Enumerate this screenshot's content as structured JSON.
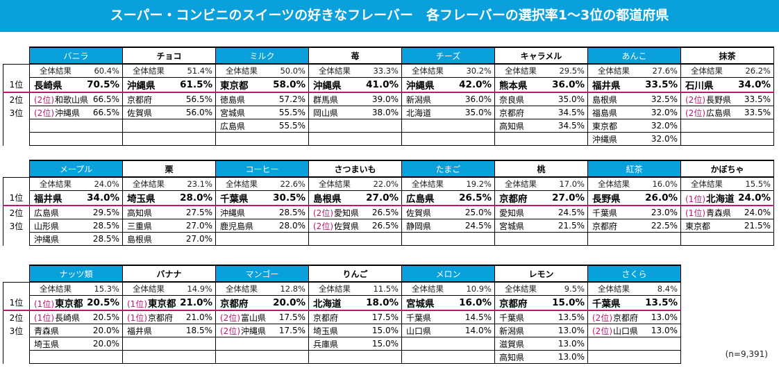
{
  "title": "スーパー・コンビニのスイーツの好きなフレーバー　各フレーバーの選択率1～3位の都道府県",
  "overall_label": "全体結果",
  "rank_labels": [
    "1位",
    "2位",
    "3位"
  ],
  "sample_size": "(n=9,391)",
  "colors": {
    "banner": "#0aa0dc",
    "rank1_line": "#c0166e",
    "tie_tag": "#c0166e"
  },
  "blocks": [
    {
      "flavors": [
        {
          "name": "バニラ",
          "style": "blue",
          "overall": "60.4%",
          "rows": [
            [
              {
                "pref": "長崎県",
                "pct": "70.5%"
              }
            ],
            [
              {
                "tie": "(2位)",
                "pref": "和歌山県",
                "pct": "66.5%"
              }
            ],
            [
              {
                "tie": "(2位)",
                "pref": "沖縄県",
                "pct": "66.5%"
              }
            ]
          ]
        },
        {
          "name": "チョコ",
          "style": "white",
          "overall": "51.4%",
          "rows": [
            [
              {
                "pref": "沖縄県",
                "pct": "61.5%"
              }
            ],
            [
              {
                "pref": "京都府",
                "pct": "56.5%"
              }
            ],
            [
              {
                "pref": "佐賀県",
                "pct": "56.0%"
              }
            ]
          ]
        },
        {
          "name": "ミルク",
          "style": "blue",
          "overall": "50.0%",
          "rows": [
            [
              {
                "pref": "東京都",
                "pct": "58.0%"
              }
            ],
            [
              {
                "pref": "徳島県",
                "pct": "57.2%"
              }
            ],
            [
              {
                "pref": "宮城県",
                "pct": "55.5%"
              },
              {
                "pref": "広島県",
                "pct": "55.5%"
              }
            ]
          ]
        },
        {
          "name": "苺",
          "style": "white",
          "overall": "33.3%",
          "rows": [
            [
              {
                "pref": "沖縄県",
                "pct": "41.0%"
              }
            ],
            [
              {
                "pref": "群馬県",
                "pct": "39.0%"
              }
            ],
            [
              {
                "pref": "岡山県",
                "pct": "38.0%"
              }
            ]
          ]
        },
        {
          "name": "チーズ",
          "style": "blue",
          "overall": "30.2%",
          "rows": [
            [
              {
                "pref": "沖縄県",
                "pct": "42.0%"
              }
            ],
            [
              {
                "pref": "新潟県",
                "pct": "36.0%"
              }
            ],
            [
              {
                "pref": "北海道",
                "pct": "35.0%"
              }
            ]
          ]
        },
        {
          "name": "キャラメル",
          "style": "white",
          "overall": "29.5%",
          "rows": [
            [
              {
                "pref": "熊本県",
                "pct": "36.0%"
              }
            ],
            [
              {
                "pref": "奈良県",
                "pct": "35.0%"
              }
            ],
            [
              {
                "pref": "京都府",
                "pct": "34.5%"
              },
              {
                "pref": "高知県",
                "pct": "34.5%"
              }
            ]
          ]
        },
        {
          "name": "あんこ",
          "style": "blue",
          "overall": "27.6%",
          "rows": [
            [
              {
                "pref": "福井県",
                "pct": "33.5%"
              }
            ],
            [
              {
                "pref": "島根県",
                "pct": "32.5%"
              }
            ],
            [
              {
                "pref": "福島県",
                "pct": "32.0%"
              },
              {
                "pref": "東京都",
                "pct": "32.0%"
              },
              {
                "pref": "沖縄県",
                "pct": "32.0%"
              }
            ]
          ]
        },
        {
          "name": "抹茶",
          "style": "white",
          "overall": "26.2%",
          "rows": [
            [
              {
                "pref": "石川県",
                "pct": "34.0%"
              }
            ],
            [
              {
                "tie": "(2位)",
                "pref": "長野県",
                "pct": "33.5%"
              }
            ],
            [
              {
                "tie": "(2位)",
                "pref": "広島県",
                "pct": "33.5%"
              }
            ]
          ]
        }
      ]
    },
    {
      "flavors": [
        {
          "name": "メープル",
          "style": "blue",
          "overall": "24.0%",
          "rows": [
            [
              {
                "pref": "福井県",
                "pct": "34.0%"
              }
            ],
            [
              {
                "pref": "広島県",
                "pct": "29.5%"
              }
            ],
            [
              {
                "pref": "山形県",
                "pct": "28.5%"
              },
              {
                "pref": "沖縄県",
                "pct": "28.5%"
              }
            ]
          ]
        },
        {
          "name": "栗",
          "style": "white",
          "overall": "23.1%",
          "rows": [
            [
              {
                "pref": "埼玉県",
                "pct": "28.0%"
              }
            ],
            [
              {
                "pref": "高知県",
                "pct": "27.5%"
              }
            ],
            [
              {
                "pref": "三重県",
                "pct": "27.0%"
              },
              {
                "pref": "島根県",
                "pct": "27.0%"
              }
            ]
          ]
        },
        {
          "name": "コーヒー",
          "style": "blue",
          "overall": "22.6%",
          "rows": [
            [
              {
                "pref": "千葉県",
                "pct": "30.5%"
              }
            ],
            [
              {
                "pref": "沖縄県",
                "pct": "28.5%"
              }
            ],
            [
              {
                "pref": "鹿児島県",
                "pct": "28.0%"
              }
            ]
          ]
        },
        {
          "name": "さつまいも",
          "style": "white",
          "overall": "22.0%",
          "rows": [
            [
              {
                "pref": "島根県",
                "pct": "27.0%"
              }
            ],
            [
              {
                "tie": "(2位)",
                "pref": "愛知県",
                "pct": "26.5%"
              }
            ],
            [
              {
                "tie": "(2位)",
                "pref": "佐賀県",
                "pct": "26.5%"
              }
            ]
          ]
        },
        {
          "name": "たまご",
          "style": "blue",
          "overall": "19.2%",
          "rows": [
            [
              {
                "pref": "広島県",
                "pct": "26.5%"
              }
            ],
            [
              {
                "pref": "佐賀県",
                "pct": "25.0%"
              }
            ],
            [
              {
                "pref": "静岡県",
                "pct": "24.5%"
              }
            ]
          ]
        },
        {
          "name": "桃",
          "style": "white",
          "overall": "17.0%",
          "rows": [
            [
              {
                "pref": "京都府",
                "pct": "27.0%"
              }
            ],
            [
              {
                "pref": "愛知県",
                "pct": "24.5%"
              }
            ],
            [
              {
                "pref": "宮城県",
                "pct": "21.5%"
              }
            ]
          ]
        },
        {
          "name": "紅茶",
          "style": "blue",
          "overall": "16.0%",
          "rows": [
            [
              {
                "pref": "長野県",
                "pct": "26.0%"
              }
            ],
            [
              {
                "pref": "千葉県",
                "pct": "23.0%"
              }
            ],
            [
              {
                "pref": "京都府",
                "pct": "22.5%"
              }
            ]
          ]
        },
        {
          "name": "かぼちゃ",
          "style": "white",
          "overall": "15.5%",
          "rows": [
            [
              {
                "tie": "(1位)",
                "pref": "北海道",
                "pct": "24.0%"
              }
            ],
            [
              {
                "tie": "(1位)",
                "pref": "青森県",
                "pct": "24.0%"
              }
            ],
            [
              {
                "pref": "東京都",
                "pct": "21.5%"
              }
            ]
          ]
        }
      ]
    },
    {
      "flavors": [
        {
          "name": "ナッツ類",
          "style": "blue",
          "overall": "15.3%",
          "rows": [
            [
              {
                "tie": "(1位)",
                "pref": "東京都",
                "pct": "20.5%"
              }
            ],
            [
              {
                "tie": "(1位)",
                "pref": "長崎県",
                "pct": "20.5%"
              }
            ],
            [
              {
                "pref": "青森県",
                "pct": "20.0%"
              },
              {
                "pref": "埼玉県",
                "pct": "20.0%"
              }
            ]
          ]
        },
        {
          "name": "バナナ",
          "style": "white",
          "overall": "14.9%",
          "rows": [
            [
              {
                "tie": "(1位)",
                "pref": "東京都",
                "pct": "21.0%"
              }
            ],
            [
              {
                "tie": "(1位)",
                "pref": "京都府",
                "pct": "21.0%"
              }
            ],
            [
              {
                "pref": "福井県",
                "pct": "18.5%"
              }
            ]
          ]
        },
        {
          "name": "マンゴー",
          "style": "blue",
          "overall": "12.8%",
          "rows": [
            [
              {
                "pref": "京都府",
                "pct": "20.0%"
              }
            ],
            [
              {
                "tie": "(2位)",
                "pref": "富山県",
                "pct": "17.5%"
              }
            ],
            [
              {
                "tie": "(2位)",
                "pref": "沖縄県",
                "pct": "17.5%"
              }
            ]
          ]
        },
        {
          "name": "りんご",
          "style": "white",
          "overall": "11.5%",
          "rows": [
            [
              {
                "pref": "北海道",
                "pct": "18.0%"
              }
            ],
            [
              {
                "pref": "京都府",
                "pct": "17.5%"
              }
            ],
            [
              {
                "pref": "埼玉県",
                "pct": "15.0%"
              },
              {
                "pref": "兵庫県",
                "pct": "15.0%"
              }
            ]
          ]
        },
        {
          "name": "メロン",
          "style": "blue",
          "overall": "10.9%",
          "rows": [
            [
              {
                "pref": "宮城県",
                "pct": "16.0%"
              }
            ],
            [
              {
                "pref": "千葉県",
                "pct": "14.5%"
              }
            ],
            [
              {
                "pref": "山口県",
                "pct": "14.0%"
              }
            ]
          ]
        },
        {
          "name": "レモン",
          "style": "white",
          "overall": "9.5%",
          "rows": [
            [
              {
                "pref": "京都府",
                "pct": "15.0%"
              }
            ],
            [
              {
                "pref": "千葉県",
                "pct": "13.5%"
              }
            ],
            [
              {
                "pref": "新潟県",
                "pct": "13.0%"
              },
              {
                "pref": "滋賀県",
                "pct": "13.0%"
              },
              {
                "pref": "高知県",
                "pct": "13.0%"
              }
            ]
          ]
        },
        {
          "name": "さくら",
          "style": "blue",
          "overall": "8.4%",
          "rows": [
            [
              {
                "pref": "千葉県",
                "pct": "13.5%"
              }
            ],
            [
              {
                "tie": "(2位)",
                "pref": "京都府",
                "pct": "13.0%"
              }
            ],
            [
              {
                "tie": "(2位)",
                "pref": "山口県",
                "pct": "13.0%"
              }
            ]
          ]
        }
      ]
    }
  ]
}
